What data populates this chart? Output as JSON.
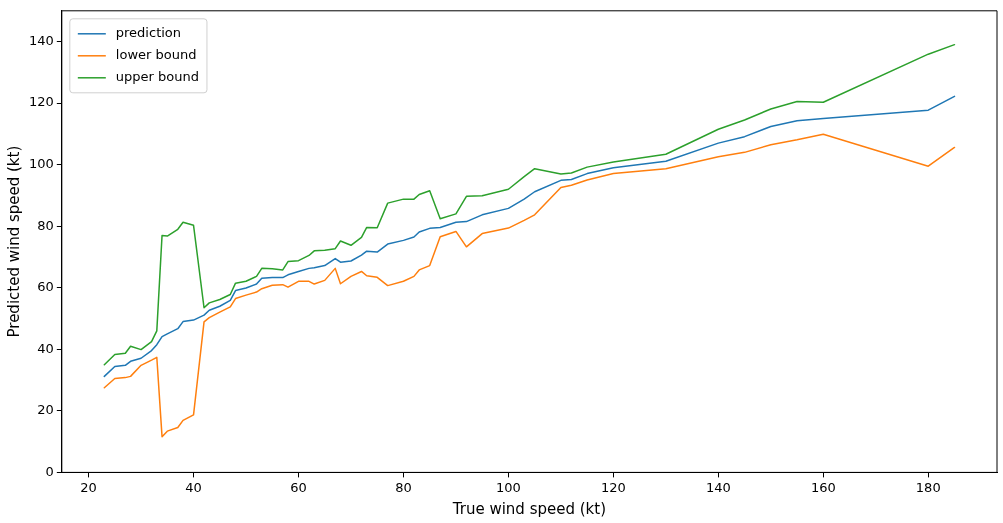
{
  "chart_data": {
    "type": "line",
    "xlabel": "True wind speed (kt)",
    "ylabel": "Predicted wind speed (kt)",
    "x": [
      23,
      25,
      27,
      28,
      30,
      32,
      33,
      34,
      35,
      37,
      38,
      40,
      42,
      43,
      45,
      47,
      48,
      50,
      52,
      53,
      55,
      57,
      58,
      60,
      62,
      63,
      65,
      67,
      68,
      70,
      72,
      73,
      75,
      77,
      80,
      82,
      83,
      85,
      87,
      90,
      92,
      95,
      100,
      103,
      105,
      110,
      112,
      115,
      120,
      130,
      140,
      145,
      150,
      155,
      160,
      180,
      185
    ],
    "series": [
      {
        "name": "prediction",
        "color": "#1f77b4",
        "values": [
          31.2,
          34.4,
          34.8,
          36.1,
          37.1,
          39.6,
          41.5,
          44.1,
          45.0,
          46.7,
          49.0,
          49.5,
          51.1,
          52.7,
          54.0,
          55.9,
          59.1,
          59.9,
          61.2,
          63.1,
          63.3,
          63.3,
          64.2,
          65.3,
          66.3,
          66.5,
          67.2,
          69.5,
          68.3,
          68.7,
          70.6,
          71.9,
          71.6,
          74.2,
          75.4,
          76.5,
          78.1,
          79.3,
          79.6,
          81.3,
          81.5,
          83.7,
          85.8,
          88.8,
          91.2,
          94.9,
          95.2,
          97.1,
          99.0,
          101.1,
          107.0,
          109.1,
          112.4,
          114.3,
          115.0,
          117.7,
          122.2
        ]
      },
      {
        "name": "lower bound",
        "color": "#ff7f0e",
        "values": [
          27.5,
          30.5,
          30.8,
          31.2,
          34.8,
          36.5,
          37.4,
          11.6,
          13.4,
          14.6,
          16.9,
          18.7,
          48.9,
          50.3,
          52.1,
          53.8,
          56.5,
          57.6,
          58.6,
          59.7,
          60.8,
          61.0,
          60.2,
          62.1,
          62.1,
          61.2,
          62.4,
          66.3,
          61.3,
          63.7,
          65.3,
          63.9,
          63.4,
          60.7,
          62.1,
          63.7,
          65.8,
          67.2,
          76.6,
          78.3,
          73.3,
          77.6,
          79.4,
          81.9,
          83.7,
          92.6,
          93.3,
          95.0,
          97.1,
          98.7,
          102.6,
          104.0,
          106.5,
          108.1,
          109.9,
          99.5,
          105.6
        ]
      },
      {
        "name": "upper bound",
        "color": "#2ca02c",
        "values": [
          35.0,
          38.3,
          38.7,
          41.0,
          39.9,
          42.5,
          46.0,
          77.0,
          76.8,
          79.0,
          81.3,
          80.3,
          53.5,
          55.1,
          56.2,
          57.8,
          61.5,
          62.1,
          63.7,
          66.3,
          66.2,
          65.8,
          68.5,
          68.8,
          70.5,
          72.0,
          72.2,
          72.7,
          75.2,
          73.8,
          76.4,
          79.6,
          79.5,
          87.5,
          88.8,
          88.8,
          90.3,
          91.5,
          82.4,
          84.0,
          89.7,
          89.9,
          92.0,
          96.1,
          98.7,
          97.0,
          97.3,
          99.2,
          100.9,
          103.4,
          111.5,
          114.5,
          118.1,
          120.5,
          120.3,
          135.9,
          139.0
        ]
      }
    ],
    "xlim": [
      14.9,
      193.1
    ],
    "ylim": [
      0,
      150
    ],
    "xticks": [
      20,
      40,
      60,
      80,
      100,
      120,
      140,
      160,
      180
    ],
    "yticks": [
      0,
      20,
      40,
      60,
      80,
      100,
      120,
      140
    ],
    "grid": false,
    "legend": "top left",
    "marker": "none",
    "line_style": "solid"
  }
}
